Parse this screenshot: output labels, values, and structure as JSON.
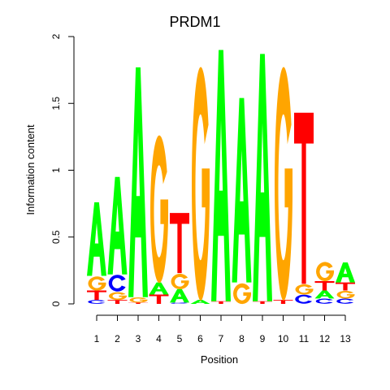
{
  "chart_data": {
    "type": "sequence-logo",
    "title": "PRDM1",
    "xlabel": "Position",
    "ylabel": "Information content",
    "ylim": [
      0,
      2
    ],
    "yticks": [
      "0",
      "0.5",
      "1",
      "1.5",
      "2"
    ],
    "categories": [
      "1",
      "2",
      "3",
      "4",
      "5",
      "6",
      "7",
      "8",
      "9",
      "10",
      "11",
      "12",
      "13"
    ],
    "colors": {
      "A": "#00ff00",
      "C": "#0000ff",
      "G": "#ffa500",
      "T": "#ff0000"
    },
    "positions": [
      {
        "pos": "1",
        "letters": [
          [
            "C",
            0.03
          ],
          [
            "T",
            0.07
          ],
          [
            "G",
            0.11
          ],
          [
            "A",
            0.55
          ]
        ]
      },
      {
        "pos": "2",
        "letters": [
          [
            "T",
            0.03
          ],
          [
            "G",
            0.06
          ],
          [
            "C",
            0.13
          ],
          [
            "A",
            0.73
          ]
        ]
      },
      {
        "pos": "3",
        "letters": [
          [
            "T",
            0.01
          ],
          [
            "G",
            0.04
          ],
          [
            "A",
            1.72
          ]
        ]
      },
      {
        "pos": "4",
        "letters": [
          [
            "T",
            0.07
          ],
          [
            "A",
            0.09
          ],
          [
            "G",
            1.15
          ]
        ]
      },
      {
        "pos": "5",
        "letters": [
          [
            "C",
            0.01
          ],
          [
            "A",
            0.1
          ],
          [
            "G",
            0.12
          ],
          [
            "T",
            0.45
          ]
        ]
      },
      {
        "pos": "6",
        "letters": [
          [
            "A",
            0.03
          ],
          [
            "G",
            1.82
          ]
        ]
      },
      {
        "pos": "7",
        "letters": [
          [
            "T",
            0.02
          ],
          [
            "A",
            1.88
          ]
        ]
      },
      {
        "pos": "8",
        "letters": [
          [
            "G",
            0.16
          ],
          [
            "A",
            1.38
          ]
        ]
      },
      {
        "pos": "9",
        "letters": [
          [
            "T",
            0.02
          ],
          [
            "A",
            1.85
          ]
        ]
      },
      {
        "pos": "10",
        "letters": [
          [
            "T",
            0.03
          ],
          [
            "G",
            1.82
          ]
        ]
      },
      {
        "pos": "11",
        "letters": [
          [
            "C",
            0.07
          ],
          [
            "G",
            0.08
          ],
          [
            "T",
            1.28
          ]
        ]
      },
      {
        "pos": "12",
        "letters": [
          [
            "C",
            0.04
          ],
          [
            "A",
            0.06
          ],
          [
            "T",
            0.07
          ],
          [
            "G",
            0.15
          ]
        ]
      },
      {
        "pos": "13",
        "letters": [
          [
            "C",
            0.04
          ],
          [
            "G",
            0.06
          ],
          [
            "T",
            0.06
          ],
          [
            "A",
            0.15
          ]
        ]
      }
    ]
  }
}
